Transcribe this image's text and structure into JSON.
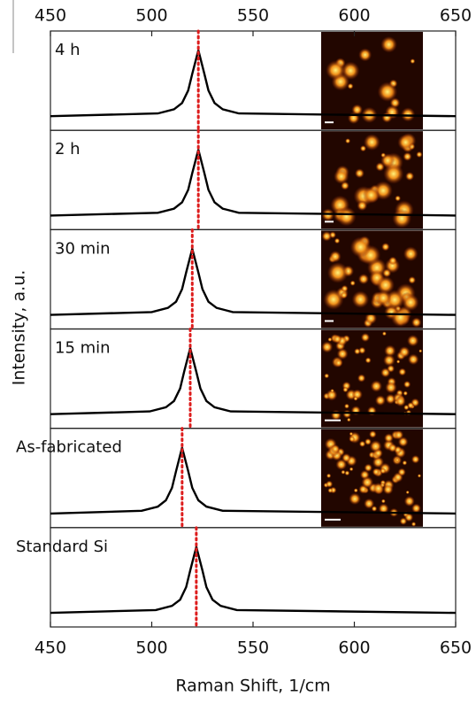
{
  "chart_data": {
    "type": "line",
    "xlabel": "Raman Shift, 1/cm",
    "ylabel": "Intensity, a.u.",
    "xlim": [
      450,
      650
    ],
    "xticks": [
      450,
      500,
      550,
      600,
      650
    ],
    "ylim": [
      0,
      1.2
    ],
    "color": "#000000",
    "peak_color": "#dd1c1c",
    "series": [
      {
        "name": "4 h",
        "peak": 523,
        "x": [
          450,
          503,
          511,
          515,
          518,
          520,
          523,
          526,
          528,
          531,
          535,
          543,
          650
        ],
        "values": [
          0.05,
          0.09,
          0.15,
          0.24,
          0.42,
          0.66,
          1.0,
          0.66,
          0.42,
          0.24,
          0.15,
          0.09,
          0.05
        ]
      },
      {
        "name": "2 h",
        "peak": 523,
        "x": [
          450,
          503,
          511,
          515,
          518,
          520,
          523,
          526,
          528,
          531,
          535,
          543,
          650
        ],
        "values": [
          0.05,
          0.09,
          0.15,
          0.24,
          0.42,
          0.66,
          1.0,
          0.66,
          0.42,
          0.24,
          0.15,
          0.09,
          0.05
        ]
      },
      {
        "name": "30 min",
        "peak": 520,
        "x": [
          450,
          500,
          508,
          512,
          515,
          517,
          520,
          523,
          525,
          528,
          532,
          540,
          650
        ],
        "values": [
          0.05,
          0.09,
          0.15,
          0.24,
          0.42,
          0.66,
          1.0,
          0.66,
          0.42,
          0.24,
          0.15,
          0.09,
          0.05
        ]
      },
      {
        "name": "15 min",
        "peak": 519,
        "x": [
          450,
          499,
          507,
          511,
          514,
          516,
          519,
          522,
          524,
          527,
          531,
          539,
          650
        ],
        "values": [
          0.05,
          0.09,
          0.15,
          0.24,
          0.42,
          0.66,
          1.0,
          0.66,
          0.42,
          0.24,
          0.15,
          0.09,
          0.05
        ]
      },
      {
        "name": "As-fabricated",
        "peak": 515,
        "x": [
          450,
          495,
          503,
          507,
          510,
          512,
          515,
          518,
          520,
          523,
          527,
          535,
          650
        ],
        "values": [
          0.05,
          0.09,
          0.15,
          0.24,
          0.42,
          0.66,
          1.0,
          0.66,
          0.42,
          0.24,
          0.15,
          0.09,
          0.05
        ]
      },
      {
        "name": "Standard Si",
        "peak": 522,
        "x": [
          450,
          502,
          510,
          514,
          517,
          519,
          522,
          525,
          527,
          530,
          534,
          542,
          650
        ],
        "values": [
          0.05,
          0.09,
          0.15,
          0.24,
          0.42,
          0.66,
          1.0,
          0.66,
          0.42,
          0.24,
          0.15,
          0.09,
          0.05
        ]
      }
    ]
  }
}
